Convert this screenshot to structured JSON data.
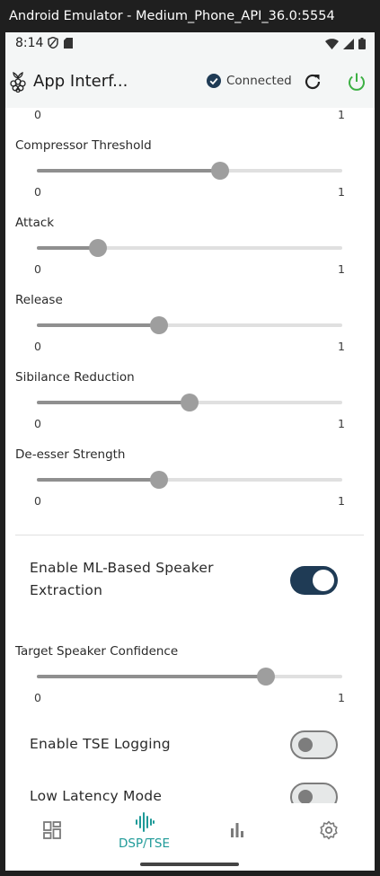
{
  "window": {
    "title": "Android Emulator - Medium_Phone_API_36.0:5554"
  },
  "status_bar": {
    "time": "8:14"
  },
  "app_bar": {
    "title": "App Interf...",
    "connection_status": "Connected",
    "icons": [
      "raspberry-logo",
      "check-circle",
      "refresh",
      "power"
    ],
    "power_color": "#3cb043"
  },
  "partial_slider": {
    "min": "0",
    "max": "1"
  },
  "sliders": [
    {
      "label": "Compressor Threshold",
      "value": 0.6,
      "min": "0",
      "max": "1"
    },
    {
      "label": "Attack",
      "value": 0.2,
      "min": "0",
      "max": "1"
    },
    {
      "label": "Release",
      "value": 0.4,
      "min": "0",
      "max": "1"
    },
    {
      "label": "Sibilance Reduction",
      "value": 0.5,
      "min": "0",
      "max": "1"
    },
    {
      "label": "De-esser Strength",
      "value": 0.4,
      "min": "0",
      "max": "1"
    }
  ],
  "ml_switch": {
    "label": "Enable ML-Based Speaker Extraction",
    "on": true
  },
  "confidence_slider": {
    "label": "Target Speaker Confidence",
    "value": 0.75,
    "min": "0",
    "max": "1"
  },
  "tse_logging_switch": {
    "label": "Enable TSE Logging",
    "on": false
  },
  "low_latency_switch": {
    "label": "Low Latency Mode",
    "on": false
  },
  "bottom_nav": {
    "items": [
      {
        "icon": "dashboard",
        "label": ""
      },
      {
        "icon": "waveform",
        "label": "DSP/TSE",
        "active": true
      },
      {
        "icon": "bar-chart",
        "label": ""
      },
      {
        "icon": "gear",
        "label": ""
      }
    ],
    "active_color": "#1e9a98"
  }
}
